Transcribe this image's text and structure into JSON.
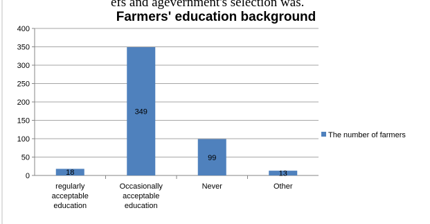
{
  "top_fragment": "efs and agevernment's selection was.",
  "chart_data": {
    "type": "bar",
    "title": "Farmers' education background",
    "categories": [
      [
        "regularly",
        "acceptable",
        "education"
      ],
      [
        "Occasionally",
        "acceptable",
        "education"
      ],
      [
        "Never"
      ],
      [
        "Other"
      ]
    ],
    "series": [
      {
        "name": "The number of farmers",
        "values": [
          18,
          349,
          99,
          13
        ],
        "color": "#4f81bd"
      }
    ],
    "data_labels": [
      "18",
      "349",
      "99",
      "13"
    ],
    "y_ticks": [
      "0",
      "50",
      "100",
      "150",
      "200",
      "250",
      "300",
      "350",
      "400"
    ],
    "ylim": [
      0,
      400
    ],
    "grid": true,
    "legend_position": "right"
  }
}
